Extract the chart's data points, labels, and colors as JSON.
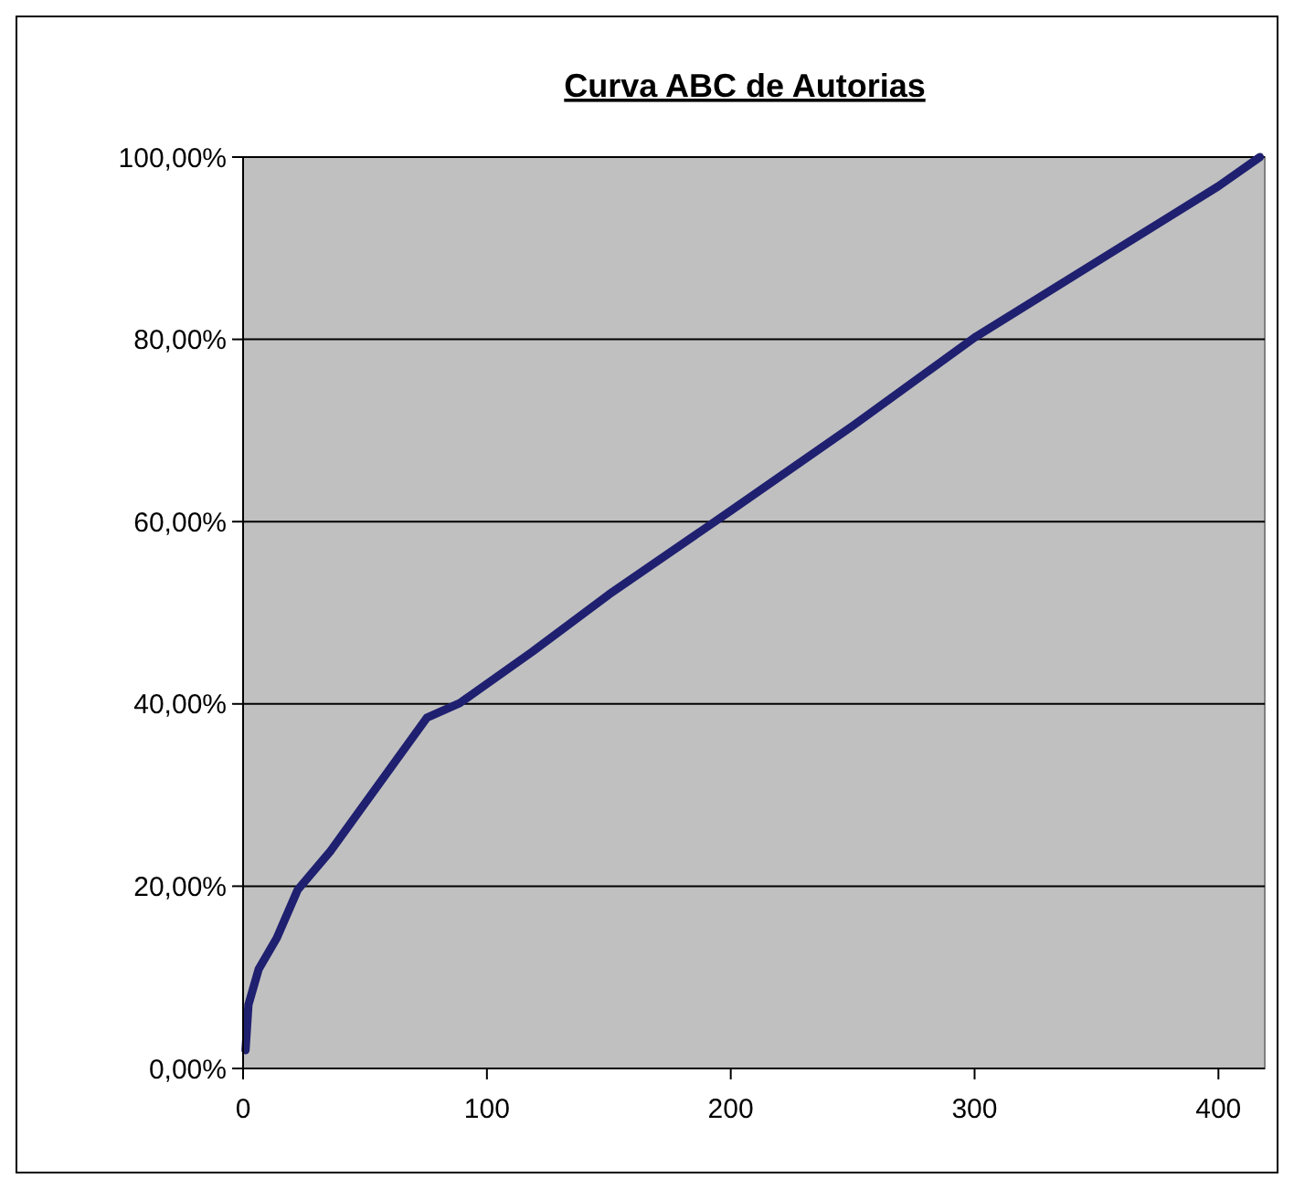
{
  "chart_data": {
    "type": "line",
    "title": "Curva ABC de Autorias",
    "x": [
      1,
      2.2,
      6.4,
      13.8,
      22.4,
      36,
      55.7,
      75.4,
      88.9,
      118.5,
      150,
      200,
      250,
      300,
      350,
      400,
      417
    ],
    "series": [
      {
        "color": "#1f2070",
        "values": [
          2,
          7,
          10.9,
          14.3,
          19.6,
          23.9,
          31.2,
          38.5,
          40.1,
          45.7,
          52,
          61.2,
          70.5,
          80.2,
          88.5,
          96.8,
          100
        ]
      }
    ],
    "xlim": [
      0,
      419
    ],
    "xticks": [
      0,
      100,
      200,
      300,
      400
    ],
    "ylim": [
      0,
      100
    ],
    "yticks": [
      {
        "value": 0,
        "label": "0,00%"
      },
      {
        "value": 20,
        "label": "20,00%"
      },
      {
        "value": 40,
        "label": "40,00%"
      },
      {
        "value": 60,
        "label": "60,00%"
      },
      {
        "value": 80,
        "label": "80,00%"
      },
      {
        "value": 100,
        "label": "100,00%"
      }
    ],
    "grid": "y",
    "marker": "none",
    "line_style": "solid"
  }
}
